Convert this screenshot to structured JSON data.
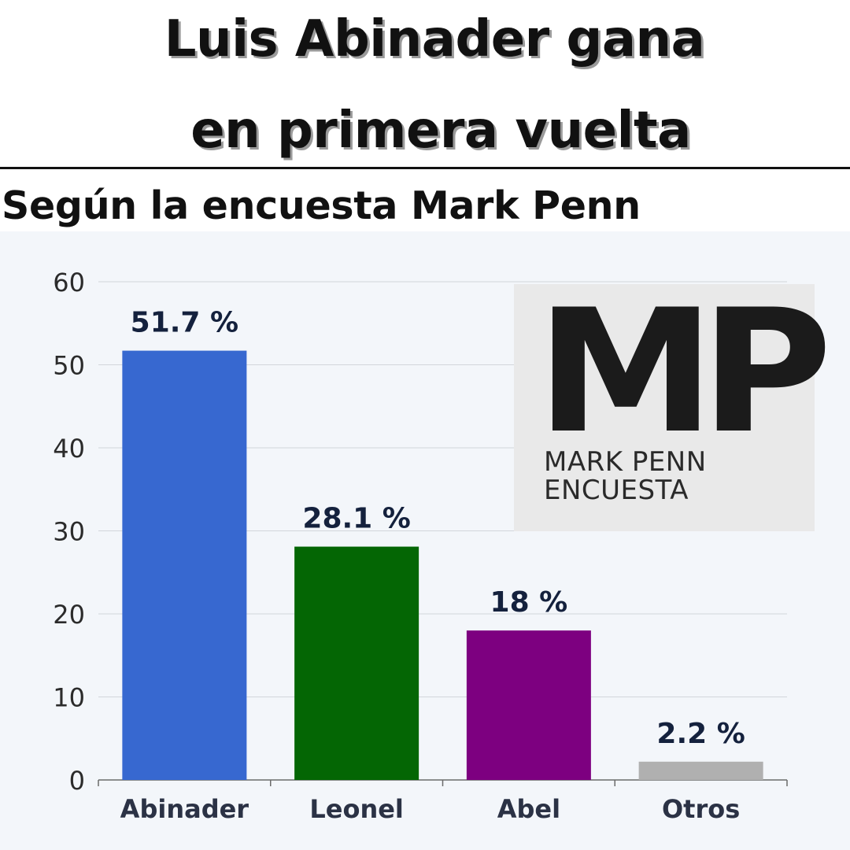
{
  "headline": {
    "line1": "Luis Abinader gana",
    "line2": "en primera vuelta"
  },
  "subtitle": "Según la encuesta Mark Penn",
  "logo": {
    "mark": "MP",
    "line1": "MARK PENN",
    "line2": "ENCUESTA"
  },
  "chart_data": {
    "type": "bar",
    "categories": [
      "Abinader",
      "Leonel",
      "Abel",
      "Otros"
    ],
    "values": [
      51.7,
      28.1,
      18,
      2.2
    ],
    "data_labels": [
      "51.7 %",
      "28.1 %",
      "18 %",
      "2.2 %"
    ],
    "colors": [
      "#3768d0",
      "#046604",
      "#7d0080",
      "#b0b0b0"
    ],
    "title": "",
    "xlabel": "",
    "ylabel": "",
    "ylim": [
      0,
      60
    ],
    "yticks": [
      0,
      10,
      20,
      30,
      40,
      50,
      60
    ],
    "grid": true,
    "legend": "none"
  }
}
